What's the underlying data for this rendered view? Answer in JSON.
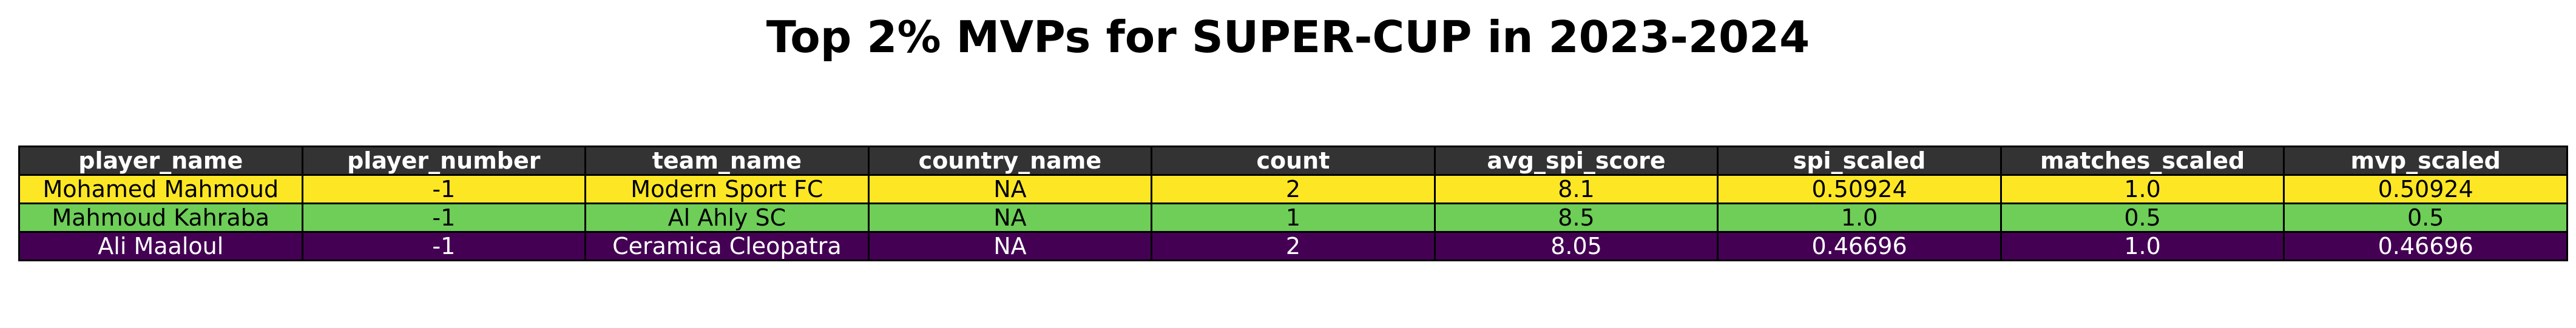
{
  "title": "Top 2% MVPs for SUPER-CUP in 2023-2024",
  "colors": {
    "header_bg": "#333333",
    "header_text": "#ffffff",
    "row_yellow": "#fde725",
    "row_green": "#6ece58",
    "row_purple": "#440154"
  },
  "chart_data": {
    "type": "table",
    "title": "Top 2% MVPs for SUPER-CUP in 2023-2024",
    "columns": [
      "player_name",
      "player_number",
      "team_name",
      "country_name",
      "count",
      "avg_spi_score",
      "spi_scaled",
      "matches_scaled",
      "mvp_scaled"
    ],
    "rows": [
      {
        "color": "#fde725",
        "cells": [
          "Mohamed Mahmoud",
          "-1",
          "Modern Sport FC",
          "NA",
          "2",
          "8.1",
          "0.50924",
          "1.0",
          "0.50924"
        ]
      },
      {
        "color": "#6ece58",
        "cells": [
          "Mahmoud Kahraba",
          "-1",
          "Al Ahly SC",
          "NA",
          "1",
          "8.5",
          "1.0",
          "0.5",
          "0.5"
        ]
      },
      {
        "color": "#440154",
        "cells": [
          "Ali Maaloul",
          "-1",
          "Ceramica Cleopatra",
          "NA",
          "2",
          "8.05",
          "0.46696",
          "1.0",
          "0.46696"
        ]
      }
    ]
  }
}
